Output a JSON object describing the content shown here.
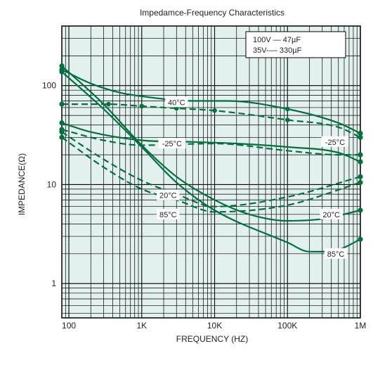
{
  "chart_data": {
    "type": "line",
    "title": "Impedamce-Frequency Characteristics",
    "xlabel": "FREQUENCY (HZ)",
    "ylabel": "IMPEDANCE(Ω)",
    "xscale": "log",
    "yscale": "log",
    "xlim": [
      80,
      1000000
    ],
    "ylim": [
      0.45,
      400
    ],
    "grid": true,
    "x_ticks": [
      {
        "value": 100,
        "label": "100"
      },
      {
        "value": 1000,
        "label": "1K"
      },
      {
        "value": 10000,
        "label": "10K"
      },
      {
        "value": 100000,
        "label": "100K"
      },
      {
        "value": 1000000,
        "label": "1M"
      }
    ],
    "y_ticks": [
      {
        "value": 1,
        "label": "1"
      },
      {
        "value": 10,
        "label": "10"
      },
      {
        "value": 100,
        "label": "100"
      }
    ],
    "legend": {
      "placement": "top-right",
      "entries": [
        {
          "text": "100V — 47µF",
          "style": "solid"
        },
        {
          "text": "35V-–– 330µF",
          "style": "dashed"
        }
      ]
    },
    "series": [
      {
        "style": "solid",
        "color": "#007040",
        "points": [
          [
            80,
            145
          ],
          [
            200,
            105
          ],
          [
            500,
            85
          ],
          [
            1000,
            78
          ],
          [
            5000,
            70
          ],
          [
            15000,
            70
          ],
          [
            100000,
            58
          ],
          [
            500000,
            42
          ],
          [
            1000000,
            33
          ]
        ]
      },
      {
        "style": "solid",
        "color": "#007040",
        "points": [
          [
            80,
            42
          ],
          [
            200,
            34
          ],
          [
            1000,
            28
          ],
          [
            5000,
            27
          ],
          [
            20000,
            26
          ],
          [
            100000,
            24
          ],
          [
            500000,
            21
          ],
          [
            1000000,
            17
          ]
        ]
      },
      {
        "style": "solid",
        "color": "#007040",
        "points": [
          [
            80,
            158
          ],
          [
            300,
            65
          ],
          [
            1000,
            25
          ],
          [
            3000,
            12
          ],
          [
            10000,
            7
          ],
          [
            30000,
            5
          ],
          [
            100000,
            4.3
          ],
          [
            300000,
            4.5
          ],
          [
            1000000,
            5.5
          ]
        ]
      },
      {
        "style": "solid",
        "color": "#007040",
        "points": [
          [
            80,
            138
          ],
          [
            300,
            58
          ],
          [
            1000,
            24
          ],
          [
            3000,
            10.5
          ],
          [
            10000,
            5.5
          ],
          [
            100000,
            2.6
          ],
          [
            200000,
            2.1
          ],
          [
            500000,
            2.2
          ],
          [
            1000000,
            2.8
          ]
        ]
      },
      {
        "style": "dashed",
        "color": "#007040",
        "points": [
          [
            80,
            65
          ],
          [
            350,
            65
          ],
          [
            1000,
            62
          ],
          [
            3000,
            59
          ],
          [
            10000,
            56
          ],
          [
            100000,
            45
          ],
          [
            500000,
            38
          ],
          [
            1000000,
            30
          ]
        ]
      },
      {
        "style": "dashed",
        "color": "#007040",
        "points": [
          [
            80,
            36
          ],
          [
            300,
            28
          ],
          [
            1000,
            25
          ],
          [
            10000,
            26
          ],
          [
            100000,
            22
          ],
          [
            500000,
            20
          ],
          [
            1000000,
            20
          ]
        ]
      },
      {
        "style": "dashed",
        "color": "#007040",
        "points": [
          [
            80,
            34
          ],
          [
            300,
            18
          ],
          [
            1000,
            11
          ],
          [
            3000,
            8
          ],
          [
            10000,
            6
          ],
          [
            100000,
            7.5
          ],
          [
            1000000,
            12
          ]
        ]
      },
      {
        "style": "dashed",
        "color": "#007040",
        "points": [
          [
            80,
            30
          ],
          [
            300,
            15
          ],
          [
            1000,
            9
          ],
          [
            3000,
            7
          ],
          [
            10000,
            5.3
          ],
          [
            100000,
            6.2
          ],
          [
            1000000,
            10.5
          ]
        ]
      }
    ],
    "annotations": [
      {
        "text": "40°C",
        "x": 3000,
        "y": 68
      },
      {
        "text": "-25°C",
        "x": 2600,
        "y": 26
      },
      {
        "text": "-25°C",
        "x": 450000,
        "y": 27
      },
      {
        "text": "20°C",
        "x": 2300,
        "y": 7.8
      },
      {
        "text": "85°C",
        "x": 2300,
        "y": 5.0
      },
      {
        "text": "20°C",
        "x": 400000,
        "y": 5.0
      },
      {
        "text": "85°C",
        "x": 460000,
        "y": 2.0
      }
    ]
  }
}
